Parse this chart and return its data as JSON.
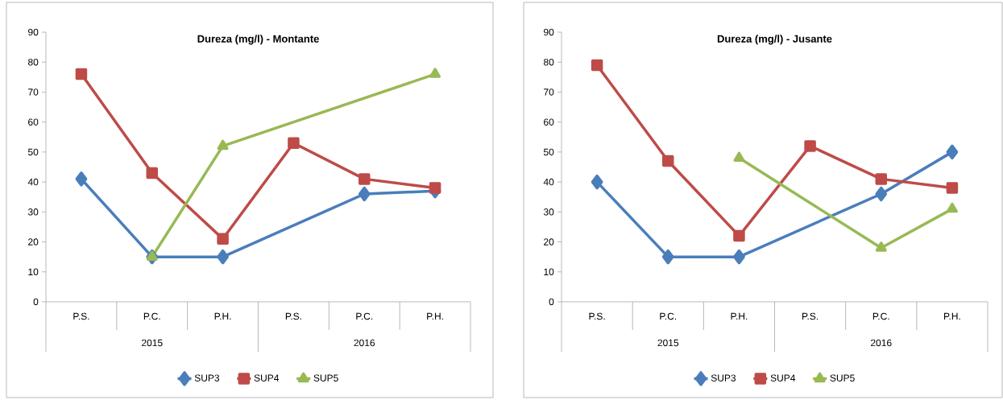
{
  "chart_data": [
    {
      "type": "line",
      "title": "Dureza (mg/l) - Montante",
      "categories": [
        "P.S.",
        "P.C.",
        "P.H.",
        "P.S.",
        "P.C.",
        "P.H."
      ],
      "annotations": [
        "2015",
        "2016"
      ],
      "ylim": [
        0,
        90
      ],
      "yticks": [
        0,
        10,
        20,
        30,
        40,
        50,
        60,
        70,
        80,
        90
      ],
      "legend": "bottom",
      "series": [
        {
          "name": "SUP3",
          "color": "#4a7ebb",
          "marker": "diamond",
          "values": [
            41,
            15,
            15,
            null,
            36,
            37
          ]
        },
        {
          "name": "SUP4",
          "color": "#be4b48",
          "marker": "square",
          "values": [
            76,
            43,
            21,
            53,
            41,
            38
          ]
        },
        {
          "name": "SUP5",
          "color": "#98b954",
          "marker": "triangle",
          "values": [
            null,
            15,
            52,
            null,
            null,
            76
          ]
        }
      ]
    },
    {
      "type": "line",
      "title": "Dureza (mg/l) - Jusante",
      "categories": [
        "P.S.",
        "P.C.",
        "P.H.",
        "P.S.",
        "P.C.",
        "P.H."
      ],
      "annotations": [
        "2015",
        "2016"
      ],
      "ylim": [
        0,
        90
      ],
      "yticks": [
        0,
        10,
        20,
        30,
        40,
        50,
        60,
        70,
        80,
        90
      ],
      "legend": "bottom",
      "series": [
        {
          "name": "SUP3",
          "color": "#4a7ebb",
          "marker": "diamond",
          "values": [
            40,
            15,
            15,
            null,
            36,
            50
          ]
        },
        {
          "name": "SUP4",
          "color": "#be4b48",
          "marker": "square",
          "values": [
            79,
            47,
            22,
            52,
            41,
            38
          ]
        },
        {
          "name": "SUP5",
          "color": "#98b954",
          "marker": "triangle",
          "values": [
            null,
            null,
            48,
            null,
            18,
            31
          ]
        }
      ]
    }
  ]
}
